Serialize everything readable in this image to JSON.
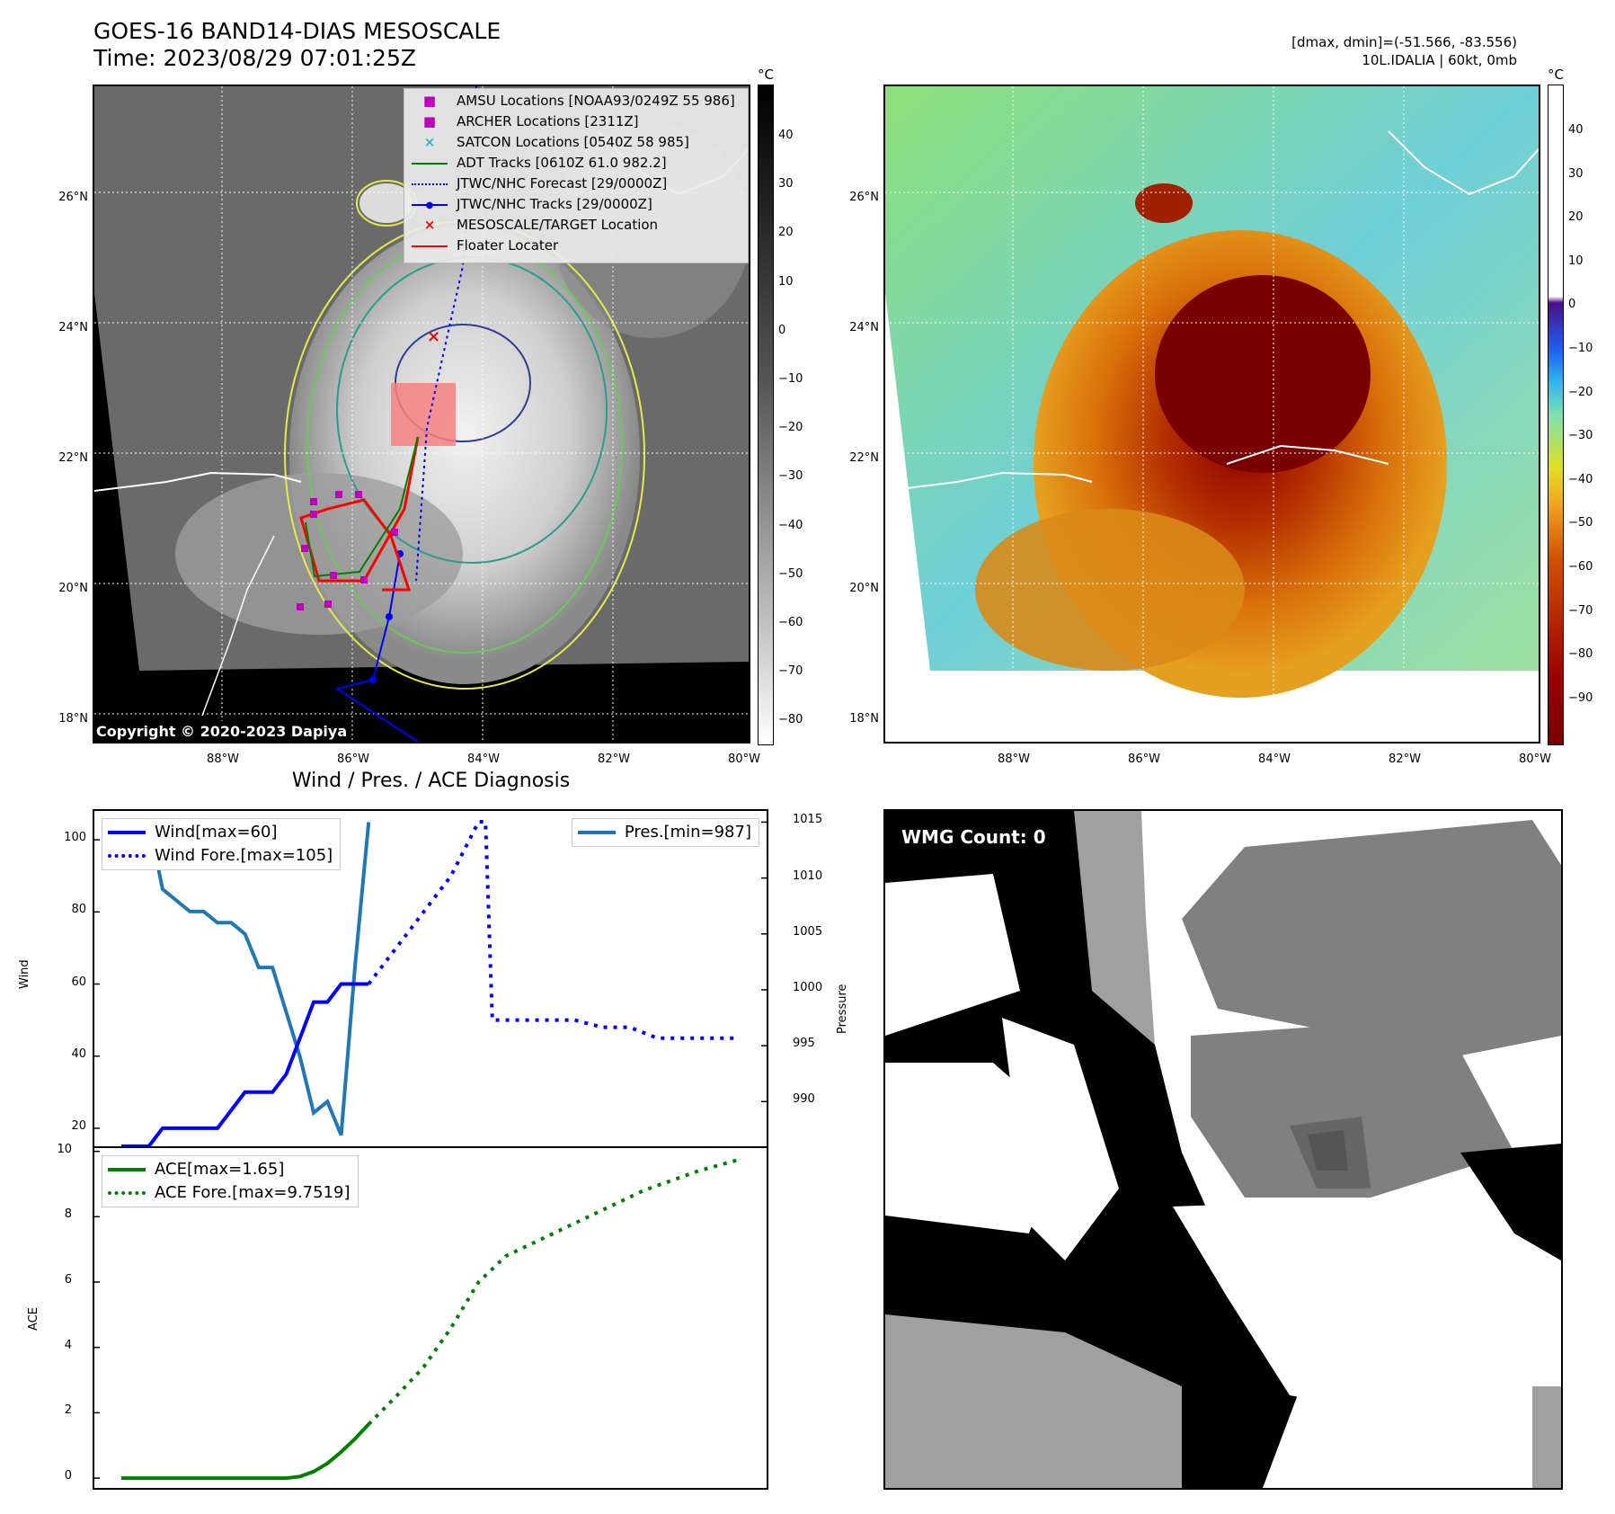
{
  "header": {
    "title_line1": "GOES-16 BAND14-DIAS MESOSCALE",
    "title_line2": "Time: 2023/08/29 07:01:25Z",
    "dmax_dmin": "[dmax, dmin]=(-51.566, -83.556)",
    "storm_info": "10L.IDALIA | 60kt, 0mb"
  },
  "map": {
    "lat_labels": [
      "26°N",
      "24°N",
      "22°N",
      "20°N",
      "18°N"
    ],
    "lon_labels": [
      "88°W",
      "86°W",
      "84°W",
      "82°W",
      "80°W"
    ],
    "copyright": "Copyright © 2020-2023 Dapiya",
    "unit": "°C",
    "gray_colorbar_ticks": [
      "40",
      "30",
      "20",
      "10",
      "0",
      "−10",
      "−20",
      "−30",
      "−40",
      "−50",
      "−60",
      "−70",
      "−80"
    ],
    "color_colorbar_ticks": [
      "40",
      "30",
      "20",
      "10",
      "0",
      "−10",
      "−20",
      "−30",
      "−40",
      "−50",
      "−60",
      "−70",
      "−80",
      "−90"
    ],
    "legend": [
      {
        "label": "AMSU Locations [NOAA93/0249Z 55 986]",
        "marker": "square",
        "color": "#bf00bf"
      },
      {
        "label": "ARCHER Locations [2311Z]",
        "marker": "square",
        "color": "#bf00bf"
      },
      {
        "label": "SATCON Locations [0540Z 58 985]",
        "marker": "x",
        "color": "#17becf"
      },
      {
        "label": "ADT Tracks [0610Z 61.0 982.2]",
        "marker": "line",
        "color": "#008000"
      },
      {
        "label": "JTWC/NHC Forecast [29/0000Z]",
        "marker": "dotted",
        "color": "#0000ff"
      },
      {
        "label": "JTWC/NHC Tracks [29/0000Z]",
        "marker": "line-dot",
        "color": "#0000ff"
      },
      {
        "label": "MESOSCALE/TARGET Location",
        "marker": "x",
        "color": "#ff0000"
      },
      {
        "label": "Floater Locater",
        "marker": "line",
        "color": "#ff0000"
      }
    ]
  },
  "diag": {
    "title": "Wind / Pres. / ACE Diagnosis",
    "wind_ylabel": "Wind",
    "pres_ylabel": "Pressure",
    "ace_ylabel": "ACE",
    "legend_wind": "Wind[max=60]",
    "legend_wind_fore": "Wind Fore.[max=105]",
    "legend_pres": "Pres.[min=987]",
    "legend_ace": "ACE[max=1.65]",
    "legend_ace_fore": "ACE Fore.[max=9.7519]",
    "wind_ticks": [
      "100",
      "80",
      "60",
      "40",
      "20"
    ],
    "pres_ticks": [
      "1015",
      "1010",
      "1005",
      "1000",
      "995",
      "990"
    ],
    "ace_ticks": [
      "10",
      "8",
      "6",
      "4",
      "2",
      "0"
    ]
  },
  "wmg": {
    "label": "WMG Count: 0"
  },
  "chart_data": [
    {
      "type": "line",
      "title": "Wind / Pres. / ACE Diagnosis",
      "ylabel": "Wind",
      "ylim": [
        15,
        108
      ],
      "series": [
        {
          "name": "Wind[max=60]",
          "x": [
            0,
            1,
            2,
            3,
            4,
            5,
            6,
            7,
            8,
            9,
            10,
            11,
            12,
            13,
            14,
            15,
            16,
            17,
            18
          ],
          "values": [
            15,
            15,
            15,
            20,
            20,
            20,
            20,
            20,
            25,
            30,
            30,
            30,
            35,
            45,
            55,
            55,
            60,
            60,
            60
          ]
        },
        {
          "name": "Wind Fore.[max=105]",
          "x": [
            18,
            20,
            22,
            24,
            26,
            26.5,
            27,
            29,
            31,
            33,
            35,
            37,
            39,
            41,
            43,
            45
          ],
          "values": [
            60,
            70,
            80,
            90,
            105,
            105,
            50,
            50,
            50,
            50,
            48,
            48,
            45,
            45,
            45,
            45
          ]
        }
      ]
    },
    {
      "type": "line",
      "ylabel": "Pressure",
      "ylim": [
        986,
        1016
      ],
      "series": [
        {
          "name": "Pres.[min=987]",
          "x": [
            0,
            1,
            2,
            3,
            4,
            5,
            6,
            7,
            8,
            9,
            10,
            11,
            12,
            13,
            14,
            15,
            16,
            17,
            18
          ],
          "values": [
            1015,
            1015,
            1015,
            1009,
            1008,
            1007,
            1007,
            1006,
            1006,
            1005,
            1002,
            1002,
            998,
            994,
            989,
            990,
            987,
            1002,
            1015
          ]
        }
      ]
    },
    {
      "type": "line",
      "ylabel": "ACE",
      "ylim": [
        -0.3,
        10.1
      ],
      "series": [
        {
          "name": "ACE[max=1.65]",
          "x": [
            0,
            2,
            4,
            6,
            8,
            10,
            11,
            12,
            13,
            14,
            15,
            16,
            17,
            18
          ],
          "values": [
            0,
            0,
            0,
            0,
            0,
            0,
            0,
            0,
            0.05,
            0.2,
            0.45,
            0.8,
            1.2,
            1.65
          ]
        },
        {
          "name": "ACE Fore.[max=9.7519]",
          "x": [
            18,
            20,
            22,
            24,
            26,
            28,
            30,
            32,
            34,
            36,
            38,
            40,
            42,
            45
          ],
          "values": [
            1.65,
            2.5,
            3.4,
            4.6,
            6.0,
            6.8,
            7.2,
            7.6,
            8.0,
            8.4,
            8.8,
            9.1,
            9.4,
            9.75
          ]
        }
      ]
    }
  ]
}
